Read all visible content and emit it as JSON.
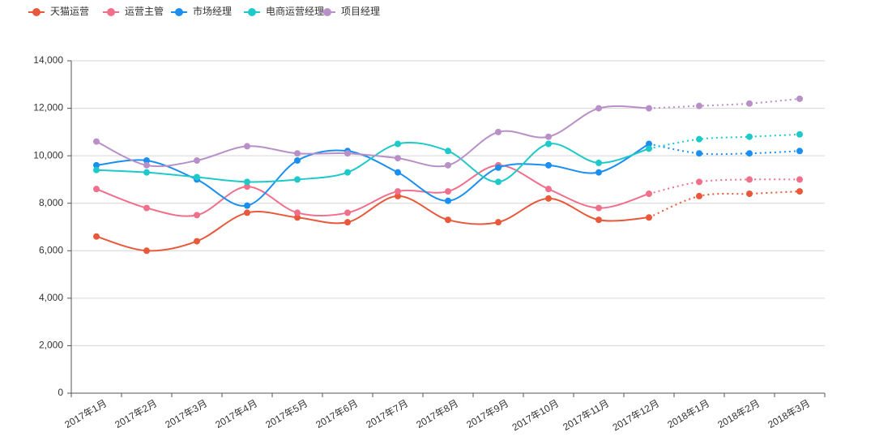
{
  "chart_data": {
    "type": "line",
    "categories": [
      "2017年1月",
      "2017年2月",
      "2017年3月",
      "2017年4月",
      "2017年5月",
      "2017年6月",
      "2017年7月",
      "2017年8月",
      "2017年9月",
      "2017年10月",
      "2017年11月",
      "2017年12月",
      "2018年1月",
      "2018年2月",
      "2018年3月"
    ],
    "series": [
      {
        "name": "天猫运营",
        "color": "#e9583a",
        "values": [
          6600,
          6000,
          6400,
          7600,
          7400,
          7200,
          8300,
          7300,
          7200,
          8200,
          7300,
          7400,
          8300,
          8400,
          8500
        ]
      },
      {
        "name": "运营主管",
        "color": "#f0708c",
        "values": [
          8600,
          7800,
          7500,
          8700,
          7600,
          7600,
          8500,
          8500,
          9600,
          8600,
          7800,
          8400,
          8900,
          9000,
          9000
        ]
      },
      {
        "name": "市场经理",
        "color": "#1b8ff0",
        "values": [
          9600,
          9800,
          9000,
          7900,
          9800,
          10200,
          9300,
          8100,
          9500,
          9600,
          9300,
          10500,
          10100,
          10100,
          10200
        ]
      },
      {
        "name": "电商运营经理",
        "color": "#1ec9c9",
        "values": [
          9400,
          9300,
          9100,
          8900,
          9000,
          9300,
          10500,
          10200,
          8900,
          10500,
          9700,
          10300,
          10700,
          10800,
          10900
        ]
      },
      {
        "name": "项目经理",
        "color": "#b98fc8",
        "values": [
          10600,
          9600,
          9800,
          10400,
          10100,
          10100,
          9900,
          9600,
          11000,
          10800,
          12000,
          12000,
          12100,
          12200,
          12400
        ]
      }
    ],
    "dotted_from_index": 11,
    "ylim": [
      0,
      14000
    ],
    "yticks": [
      0,
      {
        "value": 2000,
        "label": "2,000"
      },
      {
        "value": 4000,
        "label": "4,000"
      },
      {
        "value": 6000,
        "label": "6,000"
      },
      {
        "value": 8000,
        "label": "8,000"
      },
      {
        "value": 10000,
        "label": "10,000"
      },
      {
        "value": 12000,
        "label": "12,000"
      },
      {
        "value": 14000,
        "label": "14,000"
      }
    ],
    "grid": true,
    "legend": "top-left"
  }
}
